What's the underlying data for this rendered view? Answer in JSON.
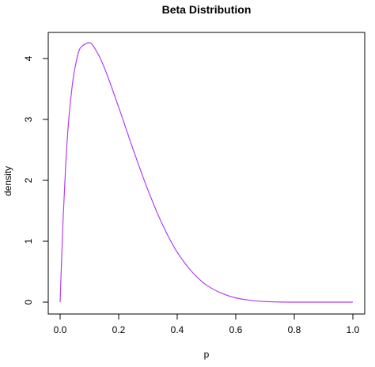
{
  "chart_data": {
    "type": "line",
    "title": "Beta Distribution",
    "xlabel": "p",
    "ylabel": "density",
    "xlim": [
      0,
      1
    ],
    "ylim": [
      0,
      4.25
    ],
    "x_ticks": [
      "0.0",
      "0.2",
      "0.4",
      "0.6",
      "0.8",
      "1.0"
    ],
    "y_ticks": [
      "0",
      "1",
      "2",
      "3",
      "4"
    ],
    "grid": false,
    "color": "#B23FF0",
    "series": [
      {
        "x": [
          0.0,
          0.01,
          0.02,
          0.03,
          0.05,
          0.07,
          0.1,
          0.13,
          0.15,
          0.2,
          0.25,
          0.3,
          0.35,
          0.4,
          0.45,
          0.5,
          0.55,
          0.6,
          0.65,
          0.7,
          0.8,
          0.9,
          1.0
        ],
        "y": [
          0.0,
          1.35,
          2.34,
          3.03,
          3.83,
          4.18,
          4.26,
          4.07,
          3.86,
          3.2,
          2.5,
          1.84,
          1.27,
          0.82,
          0.5,
          0.28,
          0.15,
          0.07,
          0.03,
          0.01,
          0.0,
          0.0,
          0.0
        ]
      }
    ]
  }
}
